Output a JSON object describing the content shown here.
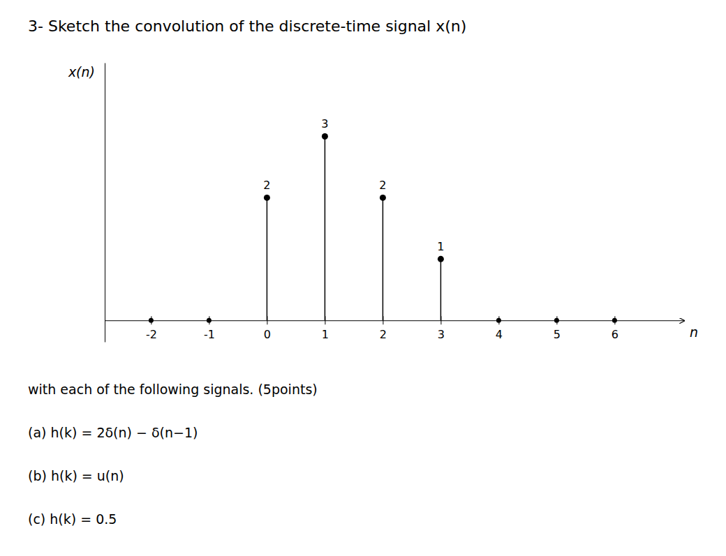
{
  "chart_data": {
    "type": "stem",
    "title": "3-   Sketch the convolution of the discrete-time signal x(n)",
    "x_label": "n",
    "y_label": "x(n)",
    "x": [
      0,
      1,
      2,
      3
    ],
    "values": [
      2,
      3,
      2,
      1
    ],
    "zero_x": [
      -2,
      -1,
      4,
      5,
      6
    ],
    "data_labels": true,
    "xlim": [
      -2.8,
      7.2
    ],
    "xticks": [
      -2,
      -1,
      0,
      1,
      2,
      3,
      4,
      5,
      6
    ],
    "ylim": [
      -0.35,
      4.2
    ],
    "tick_labels": "x",
    "grid": false,
    "annotations": [
      "with each of the following signals. (5points)",
      "(a) h(k) = 2δ(n) − δ(n−1)",
      "(b) h(k) = u(n)",
      "(c) h(k) = 0.5"
    ]
  }
}
